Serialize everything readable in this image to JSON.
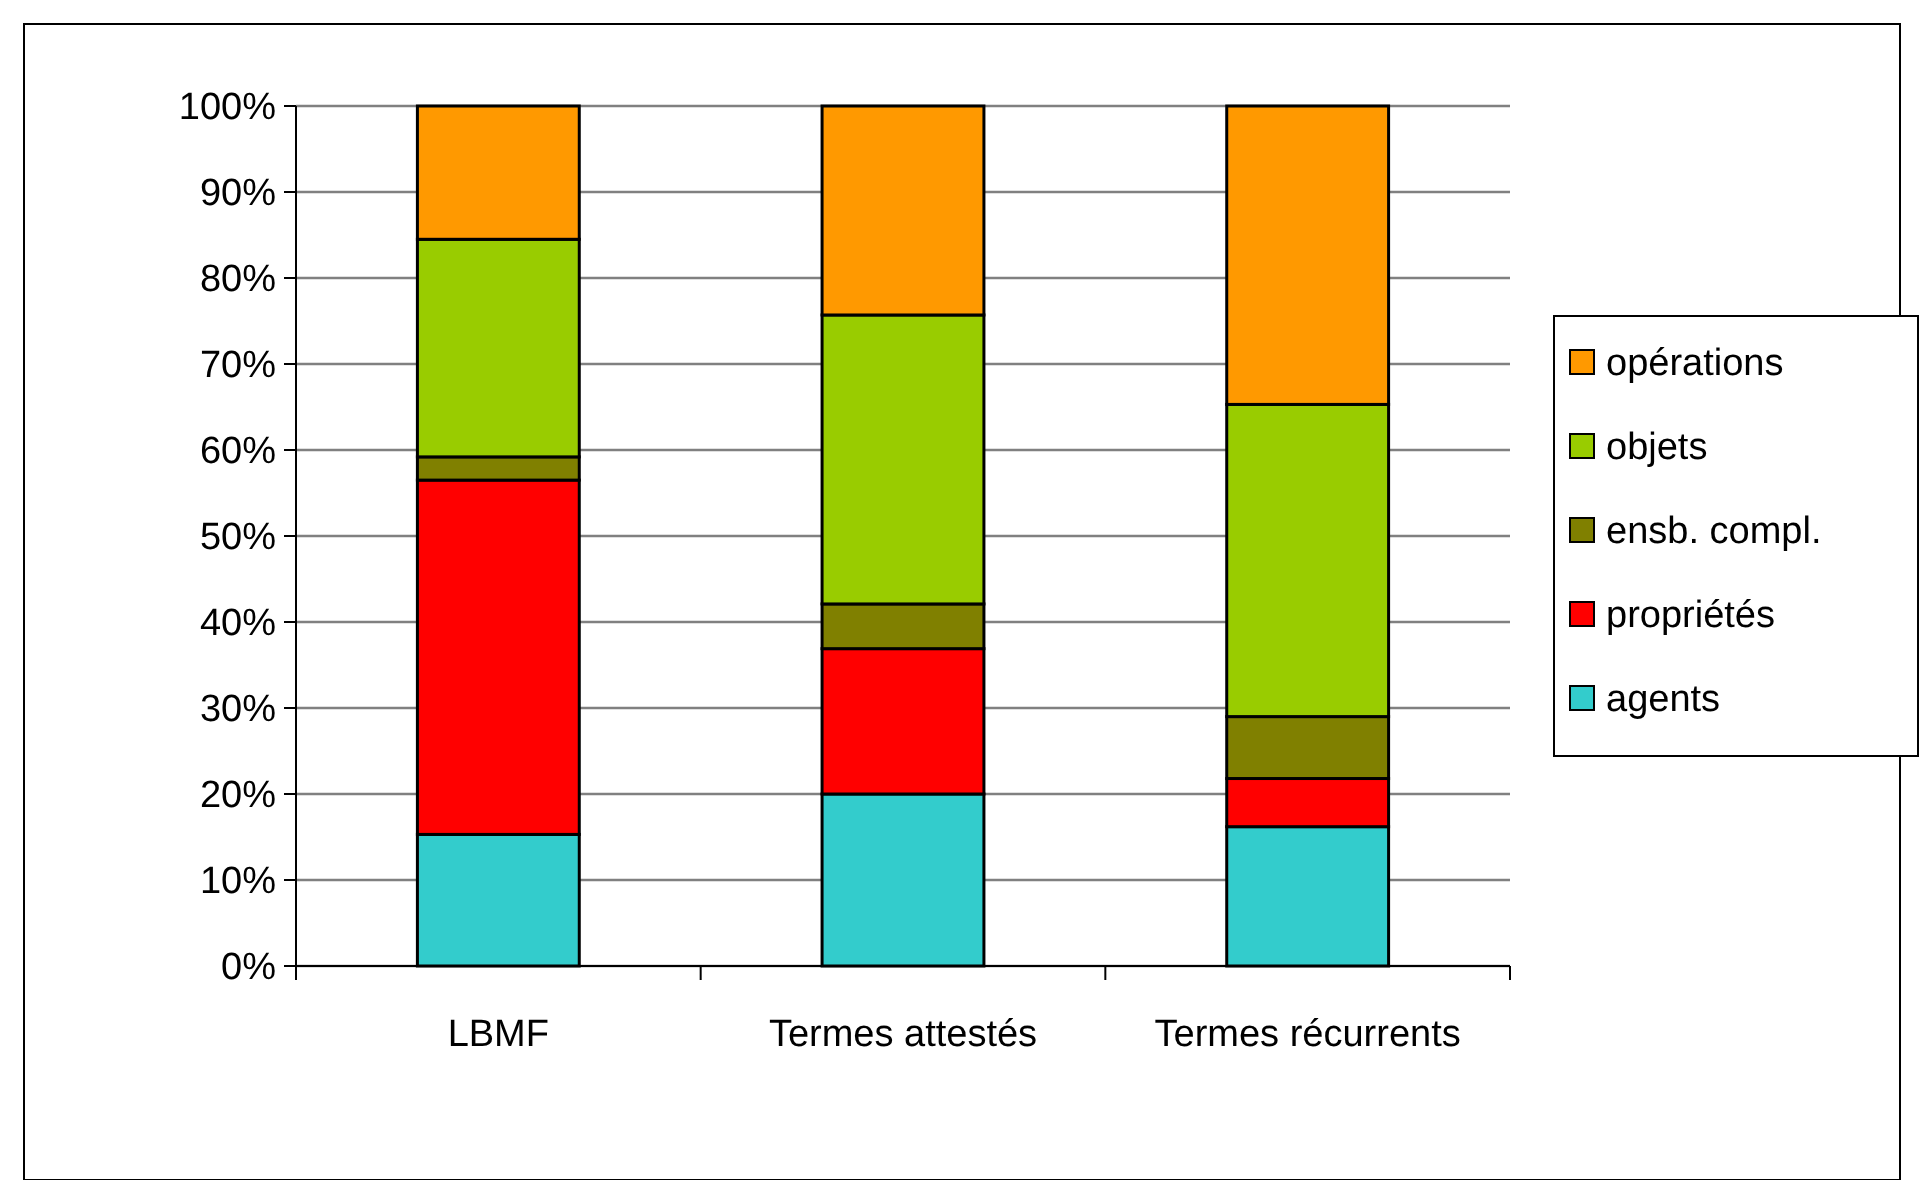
{
  "chart_data": {
    "type": "bar",
    "stacked": true,
    "categories": [
      "LBMF",
      "Termes attestés",
      "Termes récurrents"
    ],
    "series": [
      {
        "name": "agents",
        "color": "#33cccc",
        "values": [
          15.3,
          20.0,
          16.2
        ]
      },
      {
        "name": "propriétés",
        "color": "#ff0000",
        "values": [
          41.2,
          16.9,
          5.6
        ]
      },
      {
        "name": "ensb. compl.",
        "color": "#808000",
        "values": [
          2.7,
          5.2,
          7.2
        ]
      },
      {
        "name": "objets",
        "color": "#99cc00",
        "values": [
          25.3,
          33.6,
          36.3
        ]
      },
      {
        "name": "opérations",
        "color": "#ff9900",
        "values": [
          15.5,
          24.3,
          34.7
        ]
      }
    ],
    "ylim": [
      0,
      100
    ],
    "yticks": [
      {
        "value": 0,
        "label": "0%"
      },
      {
        "value": 10,
        "label": "10%"
      },
      {
        "value": 20,
        "label": "20%"
      },
      {
        "value": 30,
        "label": "30%"
      },
      {
        "value": 40,
        "label": "40%"
      },
      {
        "value": 50,
        "label": "50%"
      },
      {
        "value": 60,
        "label": "60%"
      },
      {
        "value": 70,
        "label": "70%"
      },
      {
        "value": 80,
        "label": "80%"
      },
      {
        "value": 90,
        "label": "90%"
      },
      {
        "value": 100,
        "label": "100%"
      }
    ],
    "grid": "y",
    "legend": "right"
  }
}
